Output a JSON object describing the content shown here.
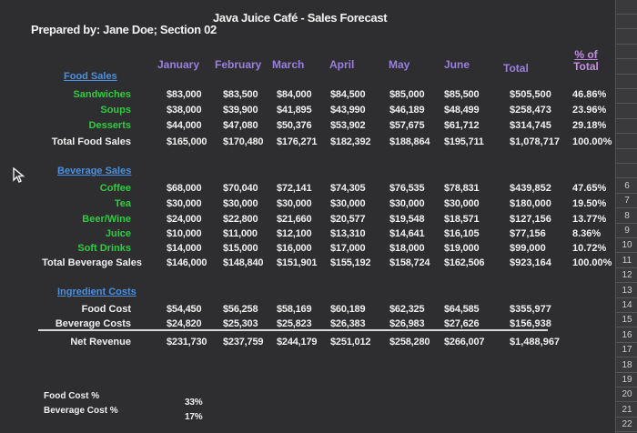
{
  "title": "Java Juice Café - Sales Forecast",
  "prepared_by": "Prepared by: Jane Doe; Section 02",
  "months": [
    "January",
    "February",
    "March",
    "April",
    "May",
    "June"
  ],
  "total_header": "Total",
  "pct_header_line1": "% of",
  "pct_header_line2": "Total",
  "food_sales": {
    "heading": "Food Sales",
    "rows": [
      {
        "label": "Sandwiches",
        "values": [
          "$83,000",
          "$83,500",
          "$84,000",
          "$84,500",
          "$85,000",
          "$85,500"
        ],
        "total": "$505,500",
        "pct": "46.86%"
      },
      {
        "label": "Soups",
        "values": [
          "$38,000",
          "$39,900",
          "$41,895",
          "$43,990",
          "$46,189",
          "$48,499"
        ],
        "total": "$258,473",
        "pct": "23.96%"
      },
      {
        "label": "Desserts",
        "values": [
          "$44,000",
          "$47,080",
          "$50,376",
          "$53,902",
          "$57,675",
          "$61,712"
        ],
        "total": "$314,745",
        "pct": "29.18%"
      }
    ],
    "total_row": {
      "label": "Total Food Sales",
      "values": [
        "$165,000",
        "$170,480",
        "$176,271",
        "$182,392",
        "$188,864",
        "$195,711"
      ],
      "total": "$1,078,717",
      "pct": "100.00%"
    }
  },
  "beverage_sales": {
    "heading": "Beverage Sales",
    "rows": [
      {
        "label": "Coffee",
        "values": [
          "$68,000",
          "$70,040",
          "$72,141",
          "$74,305",
          "$76,535",
          "$78,831"
        ],
        "total": "$439,852",
        "pct": "47.65%"
      },
      {
        "label": "Tea",
        "values": [
          "$30,000",
          "$30,000",
          "$30,000",
          "$30,000",
          "$30,000",
          "$30,000"
        ],
        "total": "$180,000",
        "pct": "19.50%"
      },
      {
        "label": "Beer/Wine",
        "values": [
          "$24,000",
          "$22,800",
          "$21,660",
          "$20,577",
          "$19,548",
          "$18,571"
        ],
        "total": "$127,156",
        "pct": "13.77%"
      },
      {
        "label": "Juice",
        "values": [
          "$10,000",
          "$11,000",
          "$12,100",
          "$13,310",
          "$14,641",
          "$16,105"
        ],
        "total": "$77,156",
        "pct": "8.36%"
      },
      {
        "label": "Soft Drinks",
        "values": [
          "$14,000",
          "$15,000",
          "$16,000",
          "$17,000",
          "$18,000",
          "$19,000"
        ],
        "total": "$99,000",
        "pct": "10.72%"
      }
    ],
    "total_row": {
      "label": "Total Beverage Sales",
      "values": [
        "$146,000",
        "$148,840",
        "$151,901",
        "$155,192",
        "$158,724",
        "$162,506"
      ],
      "total": "$923,164",
      "pct": "100.00%"
    }
  },
  "ingredient_costs": {
    "heading": "Ingredient Costs",
    "rows": [
      {
        "label": "Food Cost",
        "values": [
          "$54,450",
          "$56,258",
          "$58,169",
          "$60,189",
          "$62,325",
          "$64,585"
        ],
        "total": "$355,977"
      },
      {
        "label": "Beverage Costs",
        "values": [
          "$24,820",
          "$25,303",
          "$25,823",
          "$26,383",
          "$26,983",
          "$27,626"
        ],
        "total": "$156,938"
      }
    ],
    "net_row": {
      "label": "Net Revenue",
      "values": [
        "$231,730",
        "$237,759",
        "$244,179",
        "$251,012",
        "$258,280",
        "$266,007"
      ],
      "total": "$1,488,967"
    }
  },
  "assumptions": [
    {
      "label": "Food Cost %",
      "value": "33%"
    },
    {
      "label": "Beverage Cost %",
      "value": "17%"
    }
  ],
  "row_numbers": [
    "",
    "",
    "",
    "",
    "",
    "",
    "",
    "",
    "",
    "",
    "",
    "",
    "6",
    "7",
    "8",
    "9",
    "10",
    "11",
    "12",
    "13",
    "14",
    "15",
    "16",
    "17",
    "18",
    "19",
    "20",
    "21",
    "22"
  ],
  "colors": {
    "background": "#2e2e30",
    "header_purple": "#9a7fe0",
    "section_blue": "#4a90e2",
    "label_green": "#2ecc40"
  }
}
